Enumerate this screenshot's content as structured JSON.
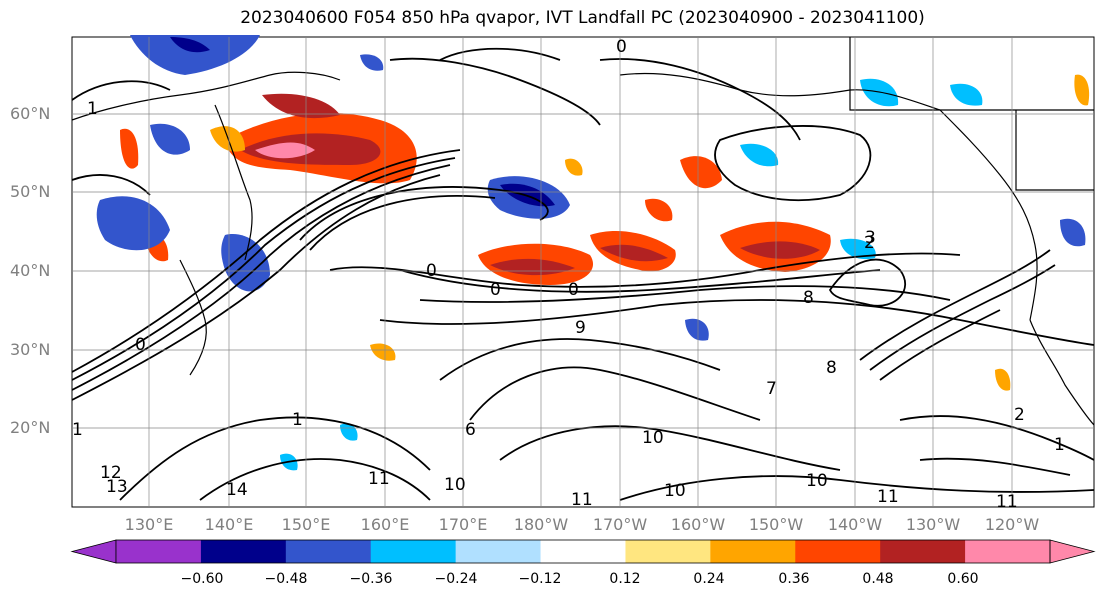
{
  "title": "2023040600 F054 850 hPa qvapor, IVT Landfall PC (2023040900 - 2023041100)",
  "lat_labels": [
    "60°N",
    "50°N",
    "40°N",
    "30°N",
    "20°N"
  ],
  "lon_labels": [
    "130°E",
    "140°E",
    "150°E",
    "160°E",
    "170°E",
    "180°W",
    "170°W",
    "160°W",
    "150°W",
    "140°W",
    "130°W",
    "120°W"
  ],
  "colorbar": {
    "colors": [
      "#9932cc",
      "#00008b",
      "#3355cc",
      "#00bfff",
      "#b0e0ff",
      "#ffffff",
      "#ffe680",
      "#ffa500",
      "#ff4500",
      "#b22222",
      "#ff88aa"
    ],
    "tick_labels": [
      "−0.60",
      "−0.48",
      "−0.36",
      "−0.24",
      "−0.12",
      "0.12",
      "0.24",
      "0.36",
      "0.48",
      "0.60"
    ]
  },
  "contour_labels": [
    "0",
    "0",
    "1",
    "0",
    "0",
    "0",
    "2",
    "9",
    "3",
    "8",
    "8",
    "10",
    "10",
    "11",
    "11",
    "11",
    "11",
    "10",
    "14",
    "12",
    "13",
    "1",
    "2",
    "7",
    "6",
    "1",
    "1",
    "10"
  ]
}
